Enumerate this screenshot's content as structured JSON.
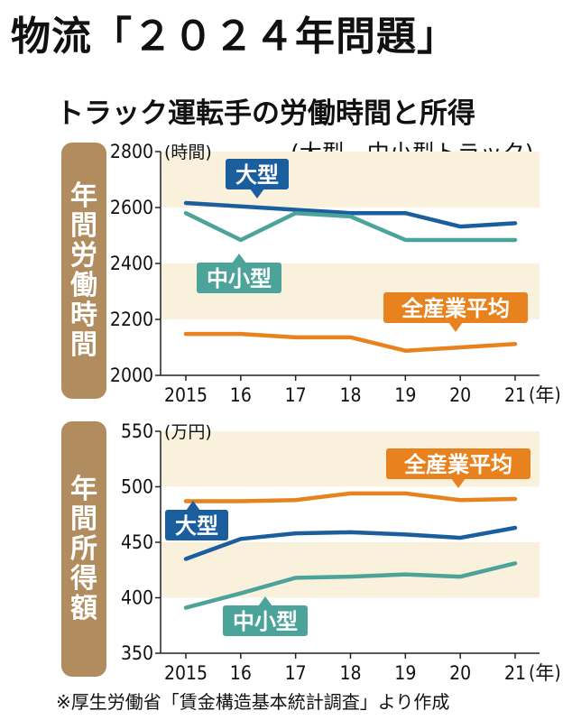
{
  "headline": "物流「２０２４年問題」",
  "title": "トラック運転手の労働時間と所得",
  "subtitle": "(大型、中小型トラック)",
  "source": "※厚生労働省「賃金構造基本統計調査」より作成",
  "colors": {
    "large": "#1b5e9e",
    "small": "#4ba39a",
    "avg": "#e8821e",
    "band": "#faf1dc",
    "panel": "#b18c5f"
  },
  "chart_data": [
    {
      "type": "line",
      "panel_label": "年間労働時間",
      "unit": "(時間)",
      "x": [
        "2015",
        "16",
        "17",
        "18",
        "19",
        "20",
        "21"
      ],
      "x_suffix": "(年)",
      "ylim": [
        2000,
        2800
      ],
      "yticks": [
        "2000",
        "2200",
        "2400",
        "2600",
        "2800"
      ],
      "series": [
        {
          "name": "大型",
          "values": [
            2616,
            2604,
            2592,
            2580,
            2580,
            2532,
            2544
          ]
        },
        {
          "name": "中小型",
          "values": [
            2580,
            2484,
            2580,
            2568,
            2484,
            2484,
            2484
          ]
        },
        {
          "name": "全産業平均",
          "values": [
            2148,
            2148,
            2136,
            2136,
            2088,
            2100,
            2112
          ]
        }
      ]
    },
    {
      "type": "line",
      "panel_label": "年間所得額",
      "unit": "(万円)",
      "x": [
        "2015",
        "16",
        "17",
        "18",
        "19",
        "20",
        "21"
      ],
      "x_suffix": "(年)",
      "ylim": [
        350,
        550
      ],
      "yticks": [
        "350",
        "400",
        "450",
        "500",
        "550"
      ],
      "series": [
        {
          "name": "大型",
          "values": [
            435,
            453,
            458,
            459,
            457,
            454,
            463
          ]
        },
        {
          "name": "中小型",
          "values": [
            391,
            404,
            418,
            419,
            421,
            419,
            431
          ]
        },
        {
          "name": "全産業平均",
          "values": [
            487,
            487,
            488,
            494,
            494,
            488,
            489
          ]
        }
      ]
    }
  ]
}
